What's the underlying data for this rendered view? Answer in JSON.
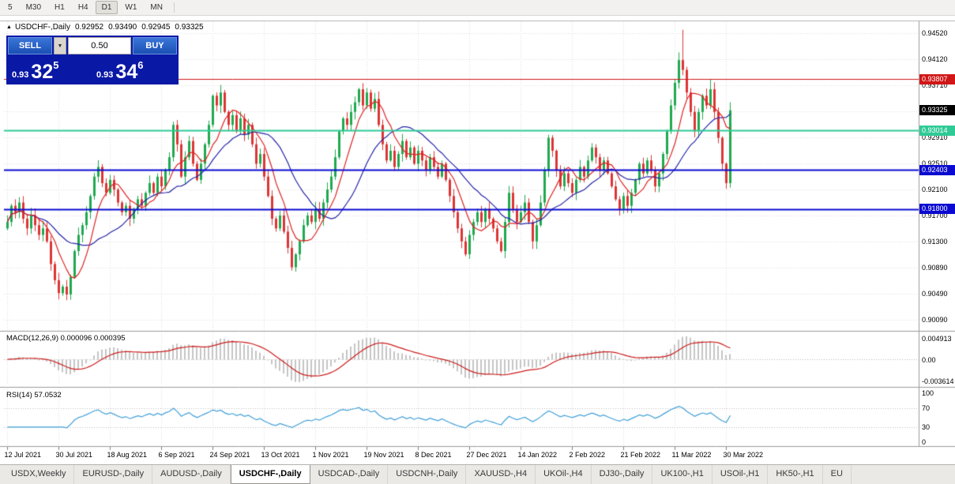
{
  "toolbar": {
    "timeframes": [
      "5",
      "M30",
      "H1",
      "H4",
      "D1",
      "W1",
      "MN"
    ],
    "active_timeframe": "D1"
  },
  "chart_header": {
    "collapse_icon": "▲",
    "title": "USDCHF-,Daily",
    "open": "0.92952",
    "high": "0.93490",
    "low": "0.92945",
    "close": "0.93325"
  },
  "trade_panel": {
    "sell_label": "SELL",
    "buy_label": "BUY",
    "volume": "0.50",
    "dropdown_icon": "▼",
    "sell_price": {
      "small": "0.93",
      "big": "32",
      "sup": "5"
    },
    "buy_price": {
      "small": "0.93",
      "big": "34",
      "sup": "6"
    }
  },
  "price_axis": {
    "ticks": [
      "0.94520",
      "0.94120",
      "0.93710",
      "0.93310",
      "0.92910",
      "0.92510",
      "0.92100",
      "0.91700",
      "0.91300",
      "0.90890",
      "0.90490",
      "0.90090"
    ]
  },
  "hlines": [
    {
      "value": "0.93807",
      "color": "#d01616",
      "width": 1
    },
    {
      "value": "0.93014",
      "color": "#2fca96",
      "width": 2
    },
    {
      "value": "0.92403",
      "color": "#0a0ad0",
      "width": 2
    },
    {
      "value": "0.91800",
      "color": "#0a0ad0",
      "width": 2
    }
  ],
  "current_price": {
    "value": "0.93325",
    "bg": "#000000"
  },
  "macd_panel": {
    "header": "MACD(12,26,9) 0.000096 0.000395",
    "axis_max": "0.004913",
    "axis_zero": "0.00",
    "axis_min": "-0.003614",
    "hist_color": "#c4c4c4",
    "signal_color": "#cc1a1a"
  },
  "rsi_panel": {
    "header": "RSI(14) 57.0532",
    "axis": [
      "100",
      "70",
      "30",
      "0"
    ],
    "levels": [
      70,
      30
    ],
    "line_color": "#3f9fd8"
  },
  "date_axis": {
    "labels": [
      "12 Jul 2021",
      "30 Jul 2021",
      "18 Aug 2021",
      "6 Sep 2021",
      "24 Sep 2021",
      "13 Oct 2021",
      "1 Nov 2021",
      "19 Nov 2021",
      "8 Dec 2021",
      "27 Dec 2021",
      "14 Jan 2022",
      "2 Feb 2022",
      "21 Feb 2022",
      "11 Mar 2022",
      "30 Mar 2022"
    ]
  },
  "tabs": {
    "active": "USDCHF-,Daily",
    "items": [
      "USDX,Weekly",
      "EURUSD-,Daily",
      "AUDUSD-,Daily",
      "USDCHF-,Daily",
      "USDCAD-,Daily",
      "USDCNH-,Daily",
      "XAUUSD-,H4",
      "UKOil-,H4",
      "DJ30-,Daily",
      "UK100-,H1",
      "USOil-,H1",
      "HK50-,H1",
      "EU"
    ],
    "_": ""
  },
  "chart_data": {
    "type": "candlestick",
    "symbol": "USDCHF-",
    "timeframe": "Daily",
    "visible_range": {
      "first_date": "12 Jul 2021",
      "last_date": "30 Mar 2022",
      "price_min": 0.8993,
      "price_max": 0.947
    },
    "first_open": 0.915,
    "closes": [
      0.916,
      0.9185,
      0.9175,
      0.919,
      0.9165,
      0.915,
      0.917,
      0.9155,
      0.914,
      0.915,
      0.913,
      0.9095,
      0.907,
      0.905,
      0.906,
      0.9048,
      0.9075,
      0.9115,
      0.914,
      0.9155,
      0.9175,
      0.92,
      0.923,
      0.9245,
      0.922,
      0.9205,
      0.9225,
      0.921,
      0.919,
      0.9175,
      0.9185,
      0.9165,
      0.918,
      0.9195,
      0.9185,
      0.9205,
      0.922,
      0.9205,
      0.923,
      0.9215,
      0.924,
      0.926,
      0.931,
      0.928,
      0.923,
      0.926,
      0.9285,
      0.925,
      0.9225,
      0.925,
      0.928,
      0.931,
      0.9355,
      0.934,
      0.936,
      0.933,
      0.931,
      0.9325,
      0.93,
      0.932,
      0.9295,
      0.931,
      0.928,
      0.925,
      0.9265,
      0.923,
      0.92,
      0.9165,
      0.915,
      0.917,
      0.9145,
      0.912,
      0.909,
      0.911,
      0.913,
      0.9155,
      0.917,
      0.916,
      0.918,
      0.9165,
      0.919,
      0.921,
      0.923,
      0.926,
      0.93,
      0.932,
      0.931,
      0.933,
      0.9345,
      0.9365,
      0.934,
      0.936,
      0.9335,
      0.935,
      0.931,
      0.928,
      0.9255,
      0.927,
      0.9245,
      0.9265,
      0.9285,
      0.926,
      0.9275,
      0.925,
      0.927,
      0.9255,
      0.924,
      0.926,
      0.9245,
      0.923,
      0.925,
      0.9225,
      0.92,
      0.9175,
      0.915,
      0.913,
      0.911,
      0.914,
      0.916,
      0.9175,
      0.916,
      0.918,
      0.9165,
      0.915,
      0.913,
      0.9115,
      0.916,
      0.9205,
      0.918,
      0.916,
      0.9175,
      0.919,
      0.916,
      0.913,
      0.9155,
      0.919,
      0.924,
      0.929,
      0.927,
      0.924,
      0.9215,
      0.9235,
      0.922,
      0.9205,
      0.9225,
      0.9245,
      0.923,
      0.9255,
      0.9275,
      0.926,
      0.924,
      0.9255,
      0.9235,
      0.9215,
      0.9195,
      0.918,
      0.92,
      0.9185,
      0.9205,
      0.9225,
      0.925,
      0.9235,
      0.9255,
      0.924,
      0.9215,
      0.9235,
      0.9265,
      0.93,
      0.934,
      0.9375,
      0.941,
      0.9395,
      0.936,
      0.933,
      0.93,
      0.933,
      0.9355,
      0.934,
      0.9365,
      0.933,
      0.929,
      0.925,
      0.922,
      0.93325
    ],
    "wick_overrides": {
      "15": {
        "l": 0.9039
      },
      "170": {
        "h": 0.9422
      },
      "171": {
        "h": 0.9457
      },
      "178": {
        "h": 0.9381
      },
      "183": {
        "h": 0.9345,
        "l": 0.9213
      }
    },
    "up_color": "#1fa94f",
    "down_color": "#dd3434",
    "grid_color": "#dedede",
    "ma_fast": {
      "period": 7,
      "color": "#e02020"
    },
    "ma_slow": {
      "period": 18,
      "color": "#2424a8"
    },
    "macd": {
      "fast": 12,
      "slow": 26,
      "signal": 9,
      "current": "0.000096",
      "current_signal": "0.000395"
    },
    "rsi": {
      "period": 14,
      "current": "57.0532"
    }
  }
}
